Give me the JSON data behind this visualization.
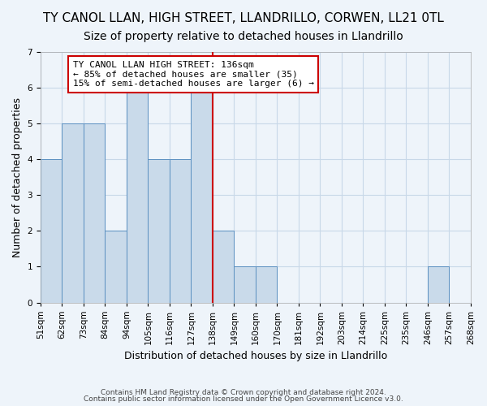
{
  "title": "TY CANOL LLAN, HIGH STREET, LLANDRILLO, CORWEN, LL21 0TL",
  "subtitle": "Size of property relative to detached houses in Llandrillo",
  "xlabel": "Distribution of detached houses by size in Llandrillo",
  "ylabel": "Number of detached properties",
  "footnote1": "Contains HM Land Registry data © Crown copyright and database right 2024.",
  "footnote2": "Contains public sector information licensed under the Open Government Licence v3.0.",
  "bin_labels": [
    "51sqm",
    "62sqm",
    "73sqm",
    "84sqm",
    "94sqm",
    "105sqm",
    "116sqm",
    "127sqm",
    "138sqm",
    "149sqm",
    "160sqm",
    "170sqm",
    "181sqm",
    "192sqm",
    "203sqm",
    "214sqm",
    "225sqm",
    "235sqm",
    "246sqm",
    "257sqm",
    "268sqm"
  ],
  "bar_heights": [
    4,
    5,
    5,
    2,
    6,
    4,
    4,
    6,
    2,
    1,
    1,
    0,
    0,
    0,
    0,
    0,
    0,
    0,
    1,
    0
  ],
  "bar_color": "#c9daea",
  "bar_edge_color": "#5a8fc0",
  "vline_x": 8.0,
  "vline_color": "#cc0000",
  "annotation_text": "TY CANOL LLAN HIGH STREET: 136sqm\n← 85% of detached houses are smaller (35)\n15% of semi-detached houses are larger (6) →",
  "annotation_box_color": "#ffffff",
  "annotation_box_edge": "#cc0000",
  "ylim": [
    0,
    7
  ],
  "yticks": [
    0,
    1,
    2,
    3,
    4,
    5,
    6,
    7
  ],
  "grid_color": "#c8d8e8",
  "background_color": "#eef4fa",
  "title_fontsize": 11,
  "subtitle_fontsize": 10,
  "axis_label_fontsize": 9,
  "tick_fontsize": 7.5,
  "annotation_fontsize": 8
}
